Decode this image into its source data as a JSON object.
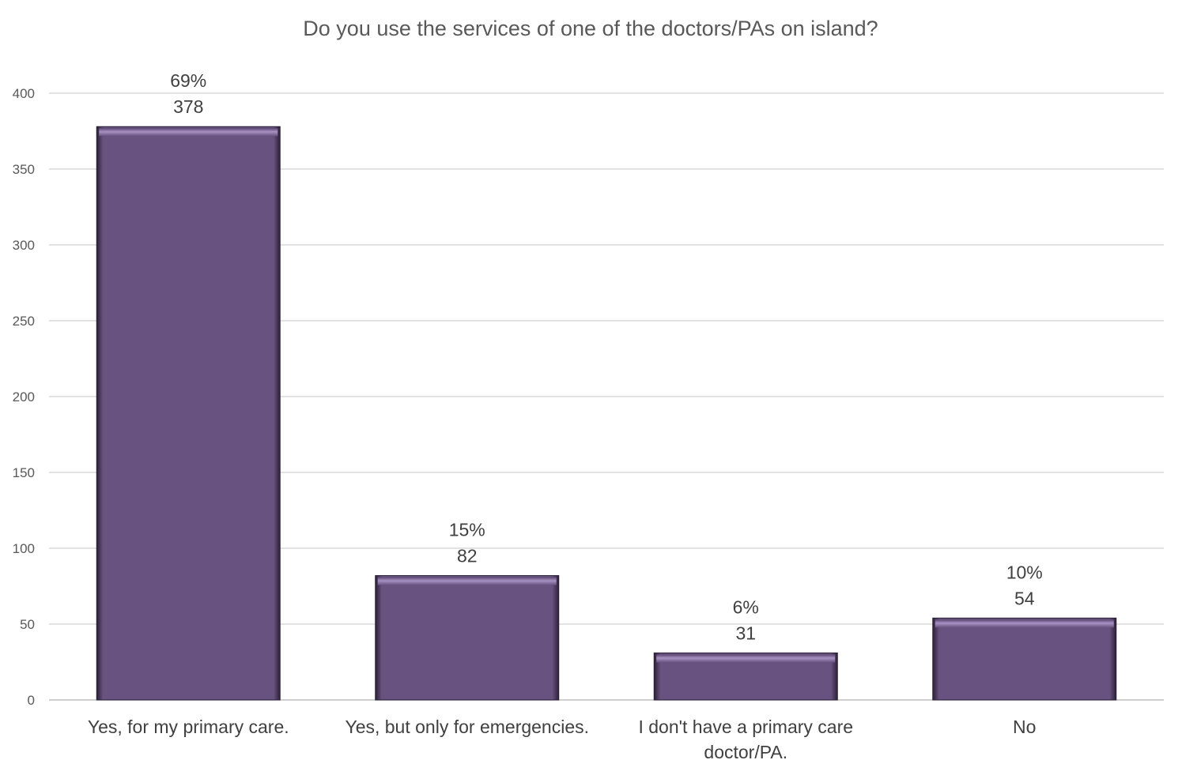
{
  "chart_data": {
    "type": "bar",
    "title": "Do you use the services of one of the doctors/PAs on island?",
    "xlabel": "",
    "ylabel": "",
    "categories": [
      [
        "Yes, for my primary care."
      ],
      [
        "Yes, but only for emergencies."
      ],
      [
        "I don't have a primary care",
        "doctor/PA."
      ],
      [
        "No"
      ]
    ],
    "values": [
      378,
      82,
      31,
      54
    ],
    "percent_labels": [
      "69%",
      "15%",
      "6%",
      "10%"
    ],
    "value_labels": [
      "378",
      "82",
      "31",
      "54"
    ],
    "ylim": [
      0,
      400
    ],
    "yticks": [
      "0",
      "50",
      "100",
      "150",
      "200",
      "250",
      "300",
      "350",
      "400"
    ],
    "ytick_values": [
      0,
      50,
      100,
      150,
      200,
      250,
      300,
      350,
      400
    ],
    "grid": true,
    "legend": "none",
    "bar_color": "#68527F",
    "bar_highlight": "#9B86B8",
    "bar_shadow": "#2A2036"
  }
}
